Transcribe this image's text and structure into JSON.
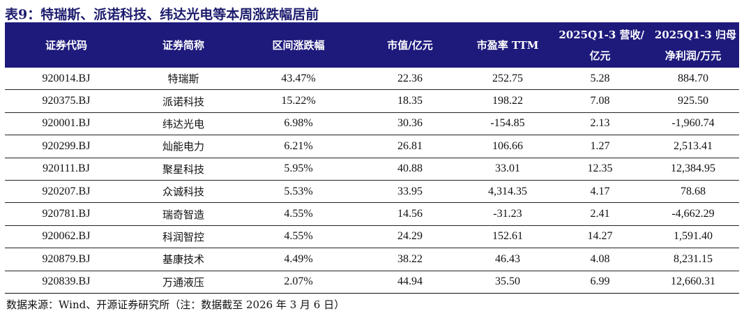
{
  "title": "表9：特瑞斯、派诺科技、纬达光电等本周涨跌幅居前",
  "header_color": "#1e1a7c",
  "columns": [
    "证券代码",
    "证券简称",
    "区间涨跌幅",
    "市值/亿元",
    "市盈率 TTM",
    [
      "2025Q1-3 营收/",
      "亿元"
    ],
    [
      "2025Q1-3 归母",
      "净利润/万元"
    ]
  ],
  "rows": [
    [
      "920014.BJ",
      "特瑞斯",
      "43.47%",
      "22.36",
      "252.75",
      "5.28",
      "884.70"
    ],
    [
      "920375.BJ",
      "派诺科技",
      "15.22%",
      "18.35",
      "198.22",
      "7.08",
      "925.50"
    ],
    [
      "920001.BJ",
      "纬达光电",
      "6.98%",
      "30.36",
      "-154.85",
      "2.13",
      "-1,960.74"
    ],
    [
      "920299.BJ",
      "灿能电力",
      "6.21%",
      "26.81",
      "106.66",
      "1.27",
      "2,513.41"
    ],
    [
      "920111.BJ",
      "聚星科技",
      "5.95%",
      "40.88",
      "33.01",
      "12.35",
      "12,384.95"
    ],
    [
      "920207.BJ",
      "众诚科技",
      "5.53%",
      "33.95",
      "4,314.35",
      "4.17",
      "78.68"
    ],
    [
      "920781.BJ",
      "瑞奇智造",
      "4.55%",
      "14.56",
      "-31.23",
      "2.41",
      "-4,662.29"
    ],
    [
      "920062.BJ",
      "科润智控",
      "4.55%",
      "24.29",
      "152.61",
      "14.27",
      "1,591.40"
    ],
    [
      "920879.BJ",
      "基康技术",
      "4.49%",
      "38.22",
      "46.43",
      "4.08",
      "8,231.15"
    ],
    [
      "920839.BJ",
      "万通液压",
      "2.07%",
      "44.94",
      "35.50",
      "6.99",
      "12,660.31"
    ]
  ],
  "source": "数据来源：Wind、开源证券研究所（注：数据截至 2026 年 3 月 6 日）"
}
